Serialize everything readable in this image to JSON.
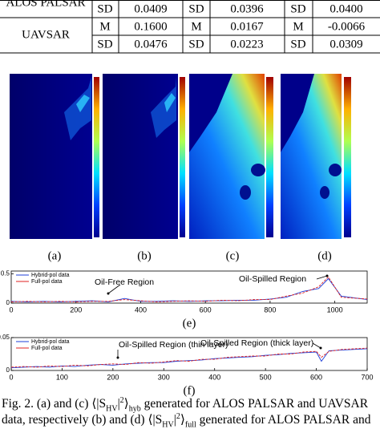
{
  "table": {
    "rows": [
      {
        "label": "ALOS PALSAR",
        "cells": [
          "SD",
          "0.0409",
          "SD",
          "0.0396",
          "SD",
          "0.0400"
        ]
      },
      {
        "label": "UAVSAR",
        "cells": [
          "M",
          "0.1600",
          "M",
          "0.0167",
          "M",
          "-0.0066"
        ]
      },
      {
        "cells": [
          "SD",
          "0.0476",
          "SD",
          "0.0223",
          "SD",
          "0.0309"
        ]
      }
    ]
  },
  "panels": [
    {
      "label": "(a)"
    },
    {
      "label": "(b)"
    },
    {
      "label": "(c)"
    },
    {
      "label": "(d)"
    }
  ],
  "plots": [
    {
      "type": "line",
      "label": "(e)",
      "x": [
        0,
        50,
        100,
        150,
        200,
        250,
        300,
        350,
        400,
        450,
        500,
        550,
        600,
        650,
        700,
        750,
        800,
        850,
        900,
        950,
        980,
        1020,
        1100
      ],
      "series": [
        {
          "name": "Hybrid-pol data",
          "color": "#1f3fd8",
          "values": [
            0.03,
            0.02,
            0.03,
            0.02,
            0.03,
            0.04,
            0.02,
            0.08,
            0.03,
            0.03,
            0.04,
            0.03,
            0.04,
            0.04,
            0.05,
            0.05,
            0.07,
            0.1,
            0.2,
            0.25,
            0.42,
            0.12,
            0.06
          ]
        },
        {
          "name": "Full-pol data",
          "color": "#e02020",
          "values": [
            0.02,
            0.03,
            0.02,
            0.03,
            0.02,
            0.03,
            0.03,
            0.06,
            0.04,
            0.02,
            0.03,
            0.04,
            0.03,
            0.05,
            0.04,
            0.06,
            0.06,
            0.12,
            0.17,
            0.28,
            0.45,
            0.1,
            0.07
          ]
        }
      ],
      "xlim": [
        0,
        1100
      ],
      "ylim": [
        0,
        0.55
      ],
      "xticks": [
        0,
        200,
        400,
        600,
        800,
        1000
      ],
      "yticks": [
        0,
        0.5
      ],
      "annotations": [
        "Oil-Free Region",
        "Oil-Spilled Region"
      ]
    },
    {
      "type": "line",
      "label": "(f)",
      "x": [
        0,
        25,
        50,
        75,
        100,
        125,
        150,
        175,
        200,
        225,
        250,
        275,
        300,
        325,
        350,
        375,
        400,
        425,
        450,
        475,
        500,
        525,
        550,
        575,
        600,
        610,
        625,
        650,
        700
      ],
      "series": [
        {
          "name": "Hybrid-pol data",
          "color": "#1f3fd8",
          "values": [
            0.004,
            0.005,
            0.006,
            0.005,
            0.007,
            0.006,
            0.008,
            0.009,
            0.008,
            0.01,
            0.011,
            0.012,
            0.012,
            0.014,
            0.015,
            0.016,
            0.018,
            0.019,
            0.02,
            0.021,
            0.023,
            0.024,
            0.026,
            0.027,
            0.028,
            0.014,
            0.03,
            0.031,
            0.033
          ]
        },
        {
          "name": "Full-pol data",
          "color": "#e02020",
          "values": [
            0.005,
            0.006,
            0.005,
            0.007,
            0.006,
            0.008,
            0.007,
            0.009,
            0.01,
            0.009,
            0.012,
            0.011,
            0.013,
            0.015,
            0.014,
            0.017,
            0.017,
            0.02,
            0.021,
            0.022,
            0.022,
            0.025,
            0.025,
            0.028,
            0.029,
            0.02,
            0.029,
            0.032,
            0.034
          ]
        }
      ],
      "xlim": [
        0,
        700
      ],
      "ylim": [
        0,
        0.05
      ],
      "xticks": [
        0,
        100,
        200,
        300,
        400,
        500,
        600,
        700
      ],
      "yticks": [
        0,
        0.05
      ],
      "annotations": [
        "Oil-Spilled Region (thin layer)",
        "Oil-Spilled Region (thick layer)"
      ]
    }
  ],
  "caption": {
    "line1": {
      "a": "Fig. 2.   (a) and (c) ⟨|S",
      "sub1": "HV",
      "b": "|",
      "sup": "2",
      "c": "⟩",
      "sub2": "hyb",
      "d": " generated for ALOS PALSAR and UAVSAR"
    },
    "line2": {
      "a": "data, respectively (b) and (d) ⟨|S",
      "sub1": "HV",
      "b": "|",
      "sup": "2",
      "c": "⟩",
      "sub2": "full",
      "d": " generated for ALOS PALSAR and"
    }
  }
}
